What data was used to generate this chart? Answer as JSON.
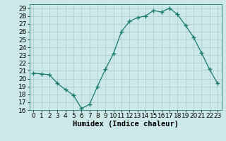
{
  "x": [
    0,
    1,
    2,
    3,
    4,
    5,
    6,
    7,
    8,
    9,
    10,
    11,
    12,
    13,
    14,
    15,
    16,
    17,
    18,
    19,
    20,
    21,
    22,
    23
  ],
  "y": [
    20.7,
    20.6,
    20.5,
    19.4,
    18.6,
    17.9,
    16.2,
    16.7,
    19.0,
    21.2,
    23.2,
    26.0,
    27.3,
    27.8,
    28.0,
    28.7,
    28.5,
    29.0,
    28.2,
    26.8,
    25.3,
    23.3,
    21.2,
    19.4
  ],
  "line_color": "#1a7a6e",
  "marker": "+",
  "marker_size": 4,
  "bg_color": "#cce8e8",
  "grid_color": "#aacccc",
  "xlabel": "Humidex (Indice chaleur)",
  "ylim": [
    16,
    29.5
  ],
  "xlim": [
    -0.5,
    23.5
  ],
  "yticks": [
    16,
    17,
    18,
    19,
    20,
    21,
    22,
    23,
    24,
    25,
    26,
    27,
    28,
    29
  ],
  "xticks": [
    0,
    1,
    2,
    3,
    4,
    5,
    6,
    7,
    8,
    9,
    10,
    11,
    12,
    13,
    14,
    15,
    16,
    17,
    18,
    19,
    20,
    21,
    22,
    23
  ],
  "xlabel_fontsize": 7.5,
  "tick_fontsize": 6.5
}
